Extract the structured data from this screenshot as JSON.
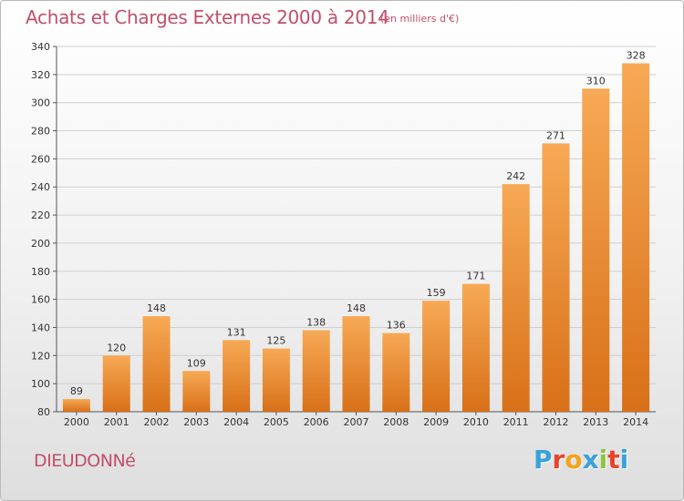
{
  "header": {
    "title": "Achats et Charges Externes 2000 à 2014",
    "subtitle": "(en milliers d'€)"
  },
  "footer": {
    "commune": "DIEUDONNé",
    "logo_text": "Proxiti",
    "logo_colors": [
      "#3aa2d8",
      "#e8442c",
      "#f3a21a",
      "#3aa2d8",
      "#8cc63f",
      "#e8442c",
      "#3aa2d8"
    ]
  },
  "colors": {
    "bar_light": "#f7a955",
    "bar_dark": "#d87018",
    "grid": "#d0d0d0",
    "text": "#333333",
    "accent": "#c0506a"
  },
  "chart_data": {
    "type": "bar",
    "categories": [
      "2000",
      "2001",
      "2002",
      "2003",
      "2004",
      "2005",
      "2006",
      "2007",
      "2008",
      "2009",
      "2010",
      "2011",
      "2012",
      "2013",
      "2014"
    ],
    "values": [
      89,
      120,
      148,
      109,
      131,
      125,
      138,
      148,
      136,
      159,
      171,
      242,
      271,
      310,
      328
    ],
    "title": "Achats et Charges Externes 2000 à 2014",
    "subtitle": "(en milliers d'€)",
    "ylim": [
      80,
      340
    ],
    "yticks": [
      80,
      100,
      120,
      140,
      160,
      180,
      200,
      220,
      240,
      260,
      280,
      300,
      320,
      340
    ],
    "grid": true,
    "data_labels": true
  }
}
